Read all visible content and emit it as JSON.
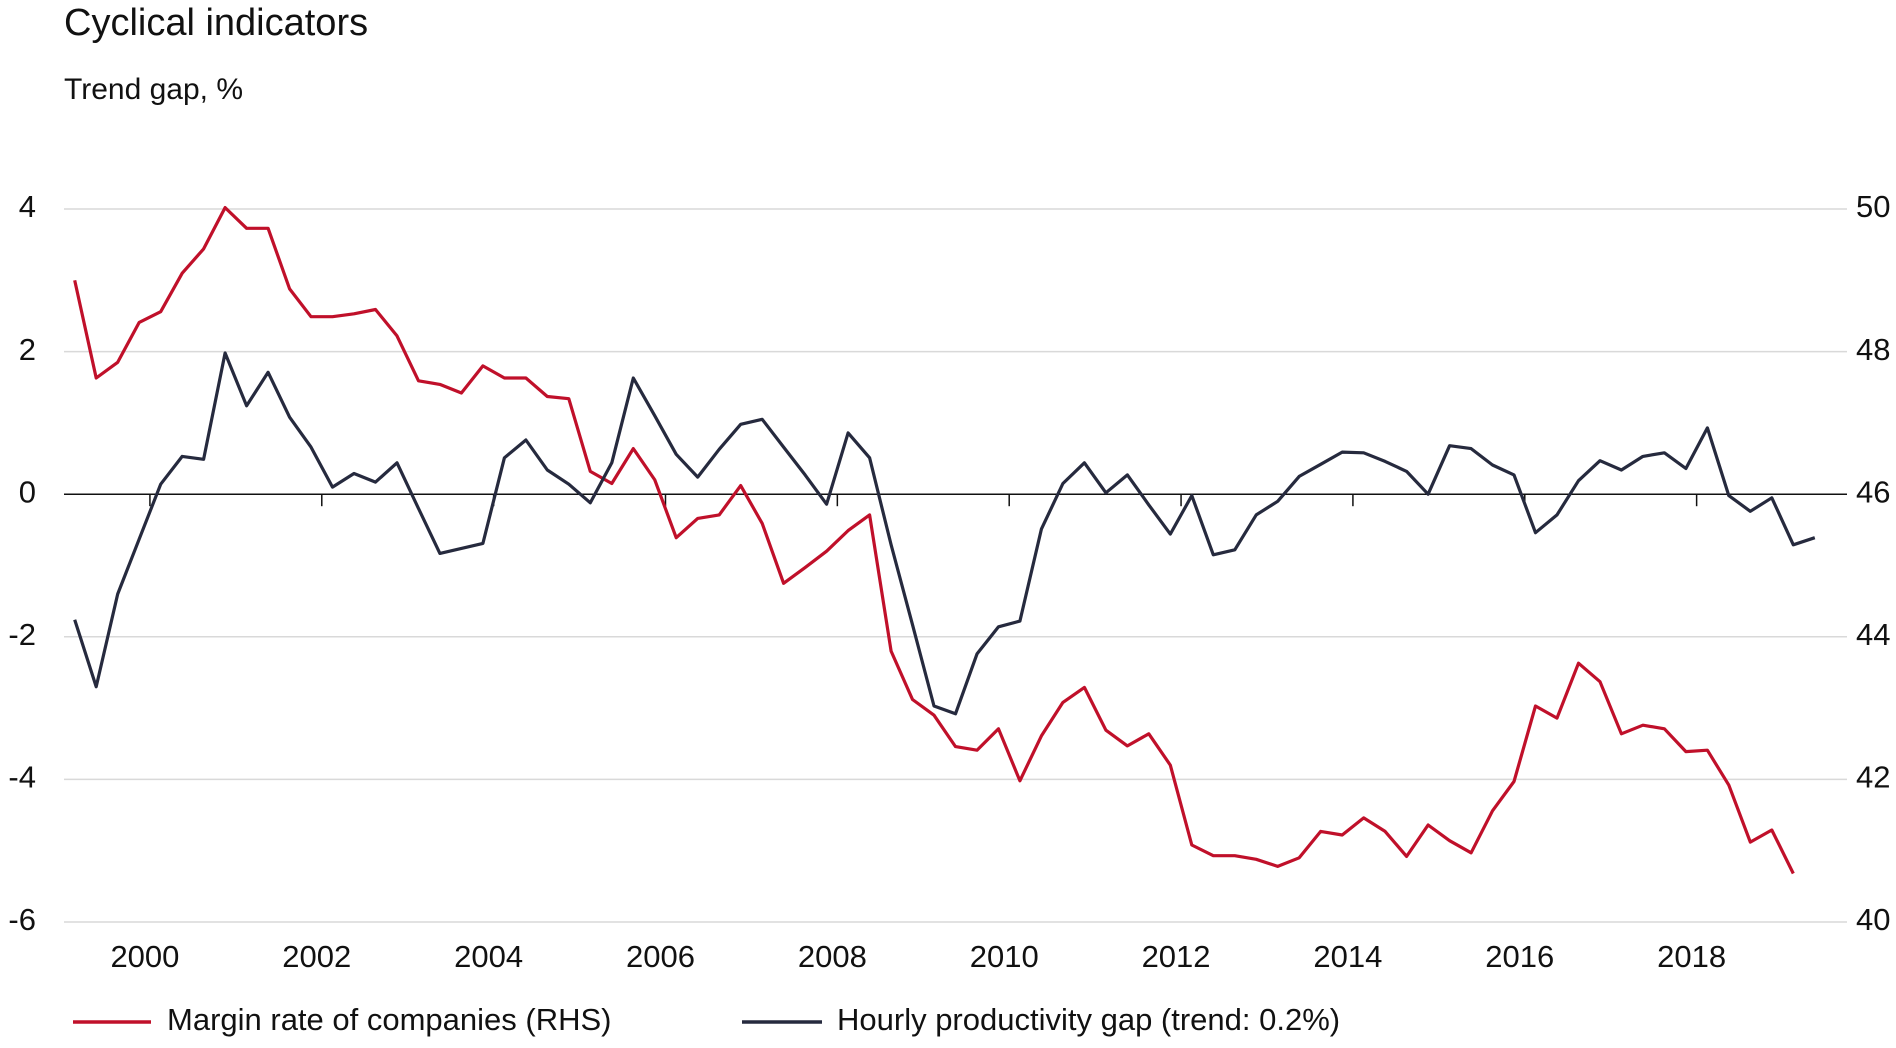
{
  "chart_data": {
    "type": "line",
    "title": "Cyclical indicators",
    "subtitle": "Trend gap, %",
    "x": [
      1999.125,
      1999.375,
      1999.625,
      1999.875,
      2000.125,
      2000.375,
      2000.625,
      2000.875,
      2001.125,
      2001.375,
      2001.625,
      2001.875,
      2002.125,
      2002.375,
      2002.625,
      2002.875,
      2003.125,
      2003.375,
      2003.625,
      2003.875,
      2004.125,
      2004.375,
      2004.625,
      2004.875,
      2005.125,
      2005.375,
      2005.625,
      2005.875,
      2006.125,
      2006.375,
      2006.625,
      2006.875,
      2007.125,
      2007.375,
      2007.625,
      2007.875,
      2008.125,
      2008.375,
      2008.625,
      2008.875,
      2009.125,
      2009.375,
      2009.625,
      2009.875,
      2010.125,
      2010.375,
      2010.625,
      2010.875,
      2011.125,
      2011.375,
      2011.625,
      2011.875,
      2012.125,
      2012.375,
      2012.625,
      2012.875,
      2013.125,
      2013.375,
      2013.625,
      2013.875,
      2014.125,
      2014.375,
      2014.625,
      2014.875,
      2015.125,
      2015.375,
      2015.625,
      2015.875,
      2016.125,
      2016.375,
      2016.625,
      2016.875,
      2017.125,
      2017.375,
      2017.625,
      2017.875,
      2018.125,
      2018.375,
      2018.625,
      2018.875,
      2019.125,
      2019.375
    ],
    "series": [
      {
        "name": "Margin rate of companies (RHS)",
        "color": "#c0102a",
        "axis": "y2",
        "values": [
          49.0,
          47.63,
          47.85,
          48.41,
          48.56,
          49.1,
          49.44,
          50.02,
          49.73,
          49.73,
          48.88,
          48.49,
          48.49,
          48.53,
          48.59,
          48.22,
          47.59,
          47.54,
          47.42,
          47.8,
          47.63,
          47.63,
          47.37,
          47.34,
          46.32,
          46.15,
          46.64,
          46.2,
          45.39,
          45.66,
          45.71,
          46.12,
          45.59,
          44.75,
          44.97,
          45.2,
          45.49,
          45.71,
          43.8,
          43.12,
          42.9,
          42.46,
          42.41,
          42.71,
          41.98,
          42.61,
          43.08,
          43.29,
          42.69,
          42.47,
          42.64,
          42.2,
          41.08,
          40.93,
          40.93,
          40.88,
          40.78,
          40.9,
          41.27,
          41.22,
          41.46,
          41.27,
          40.92,
          41.36,
          41.14,
          40.97,
          41.56,
          41.97,
          43.03,
          42.86,
          43.63,
          43.37,
          42.64,
          42.76,
          42.71,
          42.39,
          42.41,
          41.92,
          41.12,
          41.29,
          40.68,
          null
        ]
      },
      {
        "name": "Hourly productivity gap (trend: 0.2%)",
        "color": "#262a3e",
        "values": [
          -1.76,
          -2.7,
          -1.4,
          -0.63,
          0.14,
          0.53,
          0.49,
          1.98,
          1.24,
          1.71,
          1.08,
          0.66,
          0.1,
          0.29,
          0.17,
          0.44,
          -0.2,
          -0.83,
          -0.76,
          -0.69,
          0.51,
          0.76,
          0.34,
          0.14,
          -0.12,
          0.44,
          1.63,
          1.1,
          0.56,
          0.24,
          0.63,
          0.98,
          1.05,
          0.66,
          0.27,
          -0.14,
          0.86,
          0.51,
          -0.71,
          -1.83,
          -2.97,
          -3.08,
          -2.24,
          -1.86,
          -1.78,
          -0.49,
          0.15,
          0.44,
          0.02,
          0.27,
          -0.15,
          -0.56,
          -0.02,
          -0.85,
          -0.78,
          -0.29,
          -0.1,
          0.25,
          0.42,
          0.59,
          0.58,
          0.46,
          0.32,
          0,
          0.68,
          0.64,
          0.41,
          0.27,
          -0.54,
          -0.29,
          0.19,
          0.47,
          0.34,
          0.53,
          0.58,
          0.36,
          0.93,
          -0.02,
          -0.24,
          -0.05,
          -0.71,
          -0.61
        ]
      }
    ],
    "xlim": [
      1999,
      2019.75
    ],
    "xticks": [
      2000,
      2002,
      2004,
      2006,
      2008,
      2010,
      2012,
      2014,
      2016,
      2018
    ],
    "ylim": [
      -6,
      4
    ],
    "yticks": [
      -6,
      -4,
      -2,
      0,
      2,
      4
    ],
    "y2lim": [
      40,
      50
    ],
    "y2ticks": [
      40,
      42,
      44,
      46,
      48,
      50
    ],
    "grid": true
  }
}
